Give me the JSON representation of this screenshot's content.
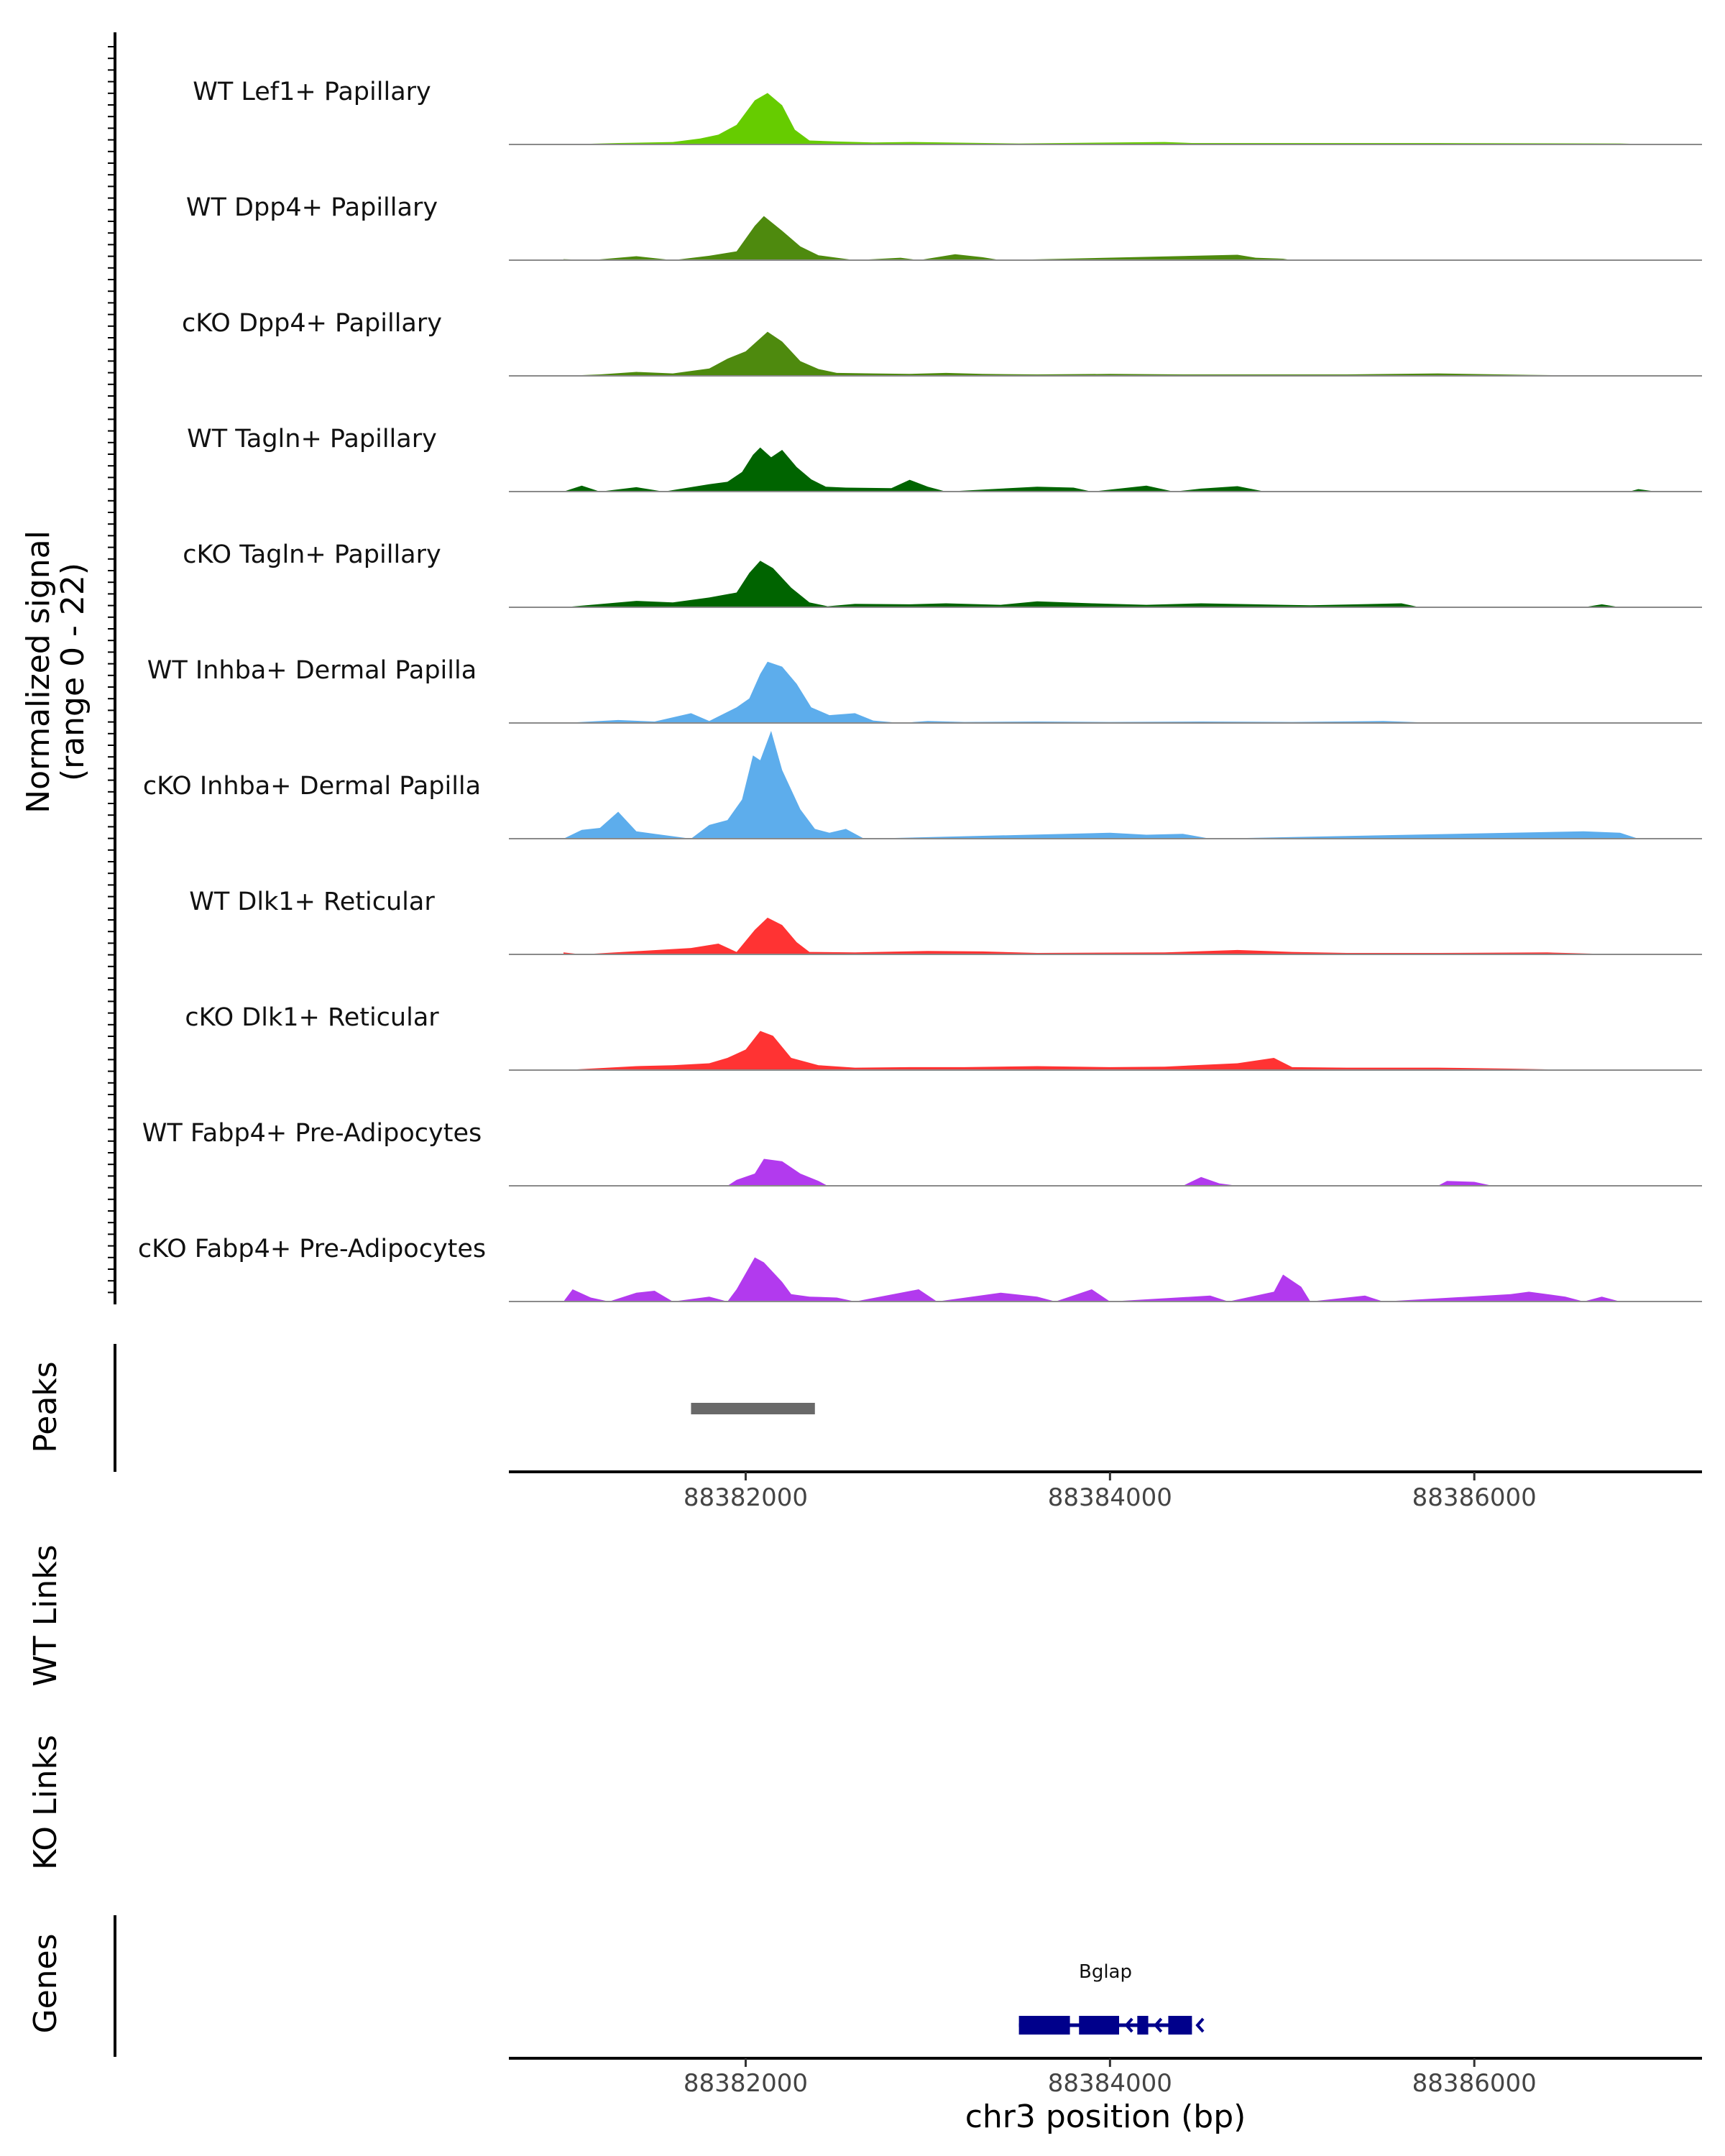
{
  "chart_data": {
    "type": "area",
    "title": "",
    "signal_axis_label": [
      "Normalized signal",
      "(range 0 - 22)"
    ],
    "signal_range": [
      0,
      22
    ],
    "xlabel": "chr3 position (bp)",
    "xlim": [
      88380700,
      88387250
    ],
    "x_ticks": [
      88382000,
      88384000,
      88386000
    ],
    "x_tick_labels": [
      "88382000",
      "88384000",
      "88386000"
    ],
    "tracks": [
      {
        "name": "WT Lef1+ Papillary",
        "color": "#66CC00",
        "points": [
          [
            88381000,
            0
          ],
          [
            88381300,
            0.3
          ],
          [
            88381600,
            0.5
          ],
          [
            88381750,
            1.2
          ],
          [
            88381850,
            2
          ],
          [
            88381950,
            4
          ],
          [
            88382050,
            9
          ],
          [
            88382120,
            10.5
          ],
          [
            88382200,
            8
          ],
          [
            88382270,
            3
          ],
          [
            88382350,
            0.8
          ],
          [
            88382500,
            0.6
          ],
          [
            88382700,
            0.4
          ],
          [
            88382900,
            0.5
          ],
          [
            88383500,
            0.2
          ],
          [
            88384300,
            0.5
          ],
          [
            88384450,
            0.3
          ],
          [
            88385800,
            0.3
          ],
          [
            88386800,
            0.2
          ],
          [
            88387000,
            0
          ]
        ]
      },
      {
        "name": "WT Dpp4+ Papillary",
        "color": "#4E8A0E",
        "points": [
          [
            88381000,
            0.2
          ],
          [
            88381150,
            0
          ],
          [
            88381400,
            0.8
          ],
          [
            88381600,
            0
          ],
          [
            88381800,
            0.9
          ],
          [
            88381950,
            1.8
          ],
          [
            88382050,
            7
          ],
          [
            88382100,
            9
          ],
          [
            88382200,
            6
          ],
          [
            88382300,
            2.8
          ],
          [
            88382400,
            1
          ],
          [
            88382500,
            0.5
          ],
          [
            88382600,
            0
          ],
          [
            88382850,
            0.5
          ],
          [
            88382950,
            0
          ],
          [
            88383150,
            1.2
          ],
          [
            88383300,
            0.6
          ],
          [
            88383400,
            0
          ],
          [
            88384700,
            1.1
          ],
          [
            88384800,
            0.5
          ],
          [
            88384950,
            0.3
          ],
          [
            88385000,
            0
          ]
        ]
      },
      {
        "name": "cKO Dpp4+ Papillary",
        "color": "#4E8A0E",
        "points": [
          [
            88381000,
            0
          ],
          [
            88381200,
            0.3
          ],
          [
            88381400,
            0.8
          ],
          [
            88381600,
            0.5
          ],
          [
            88381800,
            1.5
          ],
          [
            88381900,
            3.5
          ],
          [
            88382000,
            5
          ],
          [
            88382060,
            7
          ],
          [
            88382120,
            9
          ],
          [
            88382200,
            7
          ],
          [
            88382300,
            3
          ],
          [
            88382400,
            1.4
          ],
          [
            88382500,
            0.6
          ],
          [
            88382700,
            0.5
          ],
          [
            88382900,
            0.4
          ],
          [
            88383100,
            0.6
          ],
          [
            88383300,
            0.4
          ],
          [
            88383600,
            0.3
          ],
          [
            88384000,
            0.4
          ],
          [
            88384400,
            0.3
          ],
          [
            88384800,
            0.3
          ],
          [
            88385300,
            0.3
          ],
          [
            88385800,
            0.5
          ],
          [
            88386300,
            0.2
          ],
          [
            88386700,
            0
          ]
        ]
      },
      {
        "name": "WT Tagln+ Papillary",
        "color": "#006400",
        "points": [
          [
            88381000,
            0
          ],
          [
            88381100,
            1.2
          ],
          [
            88381200,
            0
          ],
          [
            88381400,
            0.9
          ],
          [
            88381550,
            0
          ],
          [
            88381800,
            1.5
          ],
          [
            88381900,
            2
          ],
          [
            88381980,
            4
          ],
          [
            88382040,
            7.5
          ],
          [
            88382080,
            9
          ],
          [
            88382140,
            7
          ],
          [
            88382200,
            8.5
          ],
          [
            88382280,
            5
          ],
          [
            88382360,
            2.5
          ],
          [
            88382440,
            1
          ],
          [
            88382550,
            0.8
          ],
          [
            88382800,
            0.7
          ],
          [
            88382900,
            2.4
          ],
          [
            88383000,
            1
          ],
          [
            88383100,
            0
          ],
          [
            88383600,
            1
          ],
          [
            88383800,
            0.8
          ],
          [
            88383900,
            0
          ],
          [
            88384200,
            1.2
          ],
          [
            88384350,
            0
          ],
          [
            88384500,
            0.6
          ],
          [
            88384700,
            1.1
          ],
          [
            88384850,
            0
          ],
          [
            88386850,
            0
          ],
          [
            88386900,
            0.5
          ],
          [
            88387000,
            0
          ]
        ]
      },
      {
        "name": "cKO Tagln+ Papillary",
        "color": "#006400",
        "points": [
          [
            88381000,
            0
          ],
          [
            88381400,
            1.3
          ],
          [
            88381600,
            1
          ],
          [
            88381800,
            2
          ],
          [
            88381950,
            3
          ],
          [
            88382020,
            7
          ],
          [
            88382080,
            9.5
          ],
          [
            88382150,
            8
          ],
          [
            88382250,
            4
          ],
          [
            88382350,
            1
          ],
          [
            88382450,
            0.2
          ],
          [
            88382600,
            0.7
          ],
          [
            88382900,
            0.6
          ],
          [
            88383100,
            0.8
          ],
          [
            88383400,
            0.5
          ],
          [
            88383600,
            1.2
          ],
          [
            88383900,
            0.8
          ],
          [
            88384200,
            0.5
          ],
          [
            88384500,
            0.8
          ],
          [
            88384800,
            0.6
          ],
          [
            88385100,
            0.4
          ],
          [
            88385600,
            0.8
          ],
          [
            88385700,
            0
          ],
          [
            88386600,
            0
          ],
          [
            88386700,
            0.6
          ],
          [
            88386800,
            0
          ]
        ]
      },
      {
        "name": "WT Inhba+ Dermal Papilla",
        "color": "#5DADEC",
        "points": [
          [
            88381000,
            0
          ],
          [
            88381300,
            0.6
          ],
          [
            88381500,
            0.3
          ],
          [
            88381700,
            2
          ],
          [
            88381800,
            0.4
          ],
          [
            88381950,
            3.2
          ],
          [
            88382020,
            5
          ],
          [
            88382080,
            10
          ],
          [
            88382120,
            12.5
          ],
          [
            88382200,
            11.5
          ],
          [
            88382280,
            8
          ],
          [
            88382360,
            3.2
          ],
          [
            88382460,
            1.6
          ],
          [
            88382600,
            2
          ],
          [
            88382700,
            0.5
          ],
          [
            88382850,
            0
          ],
          [
            88383000,
            0.4
          ],
          [
            88383200,
            0.2
          ],
          [
            88383600,
            0.3
          ],
          [
            88384000,
            0.2
          ],
          [
            88384500,
            0.3
          ],
          [
            88385000,
            0.2
          ],
          [
            88385500,
            0.4
          ],
          [
            88385800,
            0
          ]
        ]
      },
      {
        "name": "cKO Inhba+ Dermal Papilla",
        "color": "#5DADEC",
        "points": [
          [
            88381000,
            0
          ],
          [
            88381100,
            1.8
          ],
          [
            88381200,
            2.2
          ],
          [
            88381300,
            5.5
          ],
          [
            88381400,
            1.5
          ],
          [
            88381500,
            1
          ],
          [
            88381600,
            0.5
          ],
          [
            88381700,
            0
          ],
          [
            88381800,
            2.8
          ],
          [
            88381900,
            3.8
          ],
          [
            88381980,
            8
          ],
          [
            88382040,
            17
          ],
          [
            88382080,
            16
          ],
          [
            88382140,
            22
          ],
          [
            88382200,
            14
          ],
          [
            88382300,
            6
          ],
          [
            88382380,
            2
          ],
          [
            88382460,
            1.2
          ],
          [
            88382550,
            2
          ],
          [
            88382650,
            0
          ],
          [
            88384000,
            1.2
          ],
          [
            88384200,
            0.8
          ],
          [
            88384400,
            1
          ],
          [
            88384550,
            0
          ],
          [
            88386600,
            1.5
          ],
          [
            88386800,
            1.2
          ],
          [
            88386900,
            0
          ]
        ]
      },
      {
        "name": "WT Dlk1+ Reticular",
        "color": "#FF3333",
        "points": [
          [
            88381000,
            0.4
          ],
          [
            88381100,
            0
          ],
          [
            88381700,
            1.3
          ],
          [
            88381850,
            2.2
          ],
          [
            88381950,
            0.5
          ],
          [
            88382050,
            5
          ],
          [
            88382120,
            7.5
          ],
          [
            88382200,
            6
          ],
          [
            88382280,
            2.5
          ],
          [
            88382350,
            0.5
          ],
          [
            88382600,
            0.4
          ],
          [
            88383000,
            0.7
          ],
          [
            88383300,
            0.6
          ],
          [
            88383600,
            0.3
          ],
          [
            88384300,
            0.4
          ],
          [
            88384700,
            0.9
          ],
          [
            88385000,
            0.5
          ],
          [
            88385300,
            0.3
          ],
          [
            88385800,
            0.3
          ],
          [
            88386400,
            0.4
          ],
          [
            88386800,
            0
          ]
        ]
      },
      {
        "name": "cKO Dlk1+ Reticular",
        "color": "#FF3333",
        "points": [
          [
            88381000,
            0
          ],
          [
            88381400,
            0.8
          ],
          [
            88381600,
            1
          ],
          [
            88381800,
            1.4
          ],
          [
            88381900,
            2.5
          ],
          [
            88382000,
            4.2
          ],
          [
            88382080,
            8
          ],
          [
            88382150,
            7
          ],
          [
            88382250,
            2.5
          ],
          [
            88382400,
            1
          ],
          [
            88382600,
            0.5
          ],
          [
            88382900,
            0.6
          ],
          [
            88383200,
            0.6
          ],
          [
            88383600,
            0.8
          ],
          [
            88384000,
            0.6
          ],
          [
            88384300,
            0.7
          ],
          [
            88384700,
            1.4
          ],
          [
            88384900,
            2.5
          ],
          [
            88385000,
            0.6
          ],
          [
            88385300,
            0.5
          ],
          [
            88385800,
            0.5
          ],
          [
            88386200,
            0.3
          ],
          [
            88386600,
            0
          ]
        ]
      },
      {
        "name": "WT Fabp4+ Pre-Adipocytes",
        "color": "#B23AEE",
        "points": [
          [
            88381900,
            0
          ],
          [
            88381950,
            1.2
          ],
          [
            88382050,
            2.5
          ],
          [
            88382100,
            5.5
          ],
          [
            88382200,
            5
          ],
          [
            88382300,
            2.5
          ],
          [
            88382400,
            1
          ],
          [
            88382450,
            0
          ],
          [
            88384400,
            0
          ],
          [
            88384500,
            1.8
          ],
          [
            88384600,
            0.5
          ],
          [
            88384700,
            0
          ],
          [
            88385800,
            0
          ],
          [
            88385850,
            1
          ],
          [
            88386000,
            0.8
          ],
          [
            88386100,
            0
          ]
        ]
      },
      {
        "name": "cKO Fabp4+ Pre-Adipocytes",
        "color": "#B23AEE",
        "points": [
          [
            88381000,
            0
          ],
          [
            88381050,
            2.5
          ],
          [
            88381150,
            0.8
          ],
          [
            88381250,
            0
          ],
          [
            88381400,
            1.8
          ],
          [
            88381500,
            2.2
          ],
          [
            88381600,
            0
          ],
          [
            88381800,
            1
          ],
          [
            88381900,
            0
          ],
          [
            88381950,
            2.5
          ],
          [
            88382050,
            9
          ],
          [
            88382100,
            8
          ],
          [
            88382200,
            4
          ],
          [
            88382250,
            1.5
          ],
          [
            88382350,
            1
          ],
          [
            88382500,
            0.8
          ],
          [
            88382600,
            0
          ],
          [
            88382950,
            2.5
          ],
          [
            88383050,
            0
          ],
          [
            88383400,
            1.8
          ],
          [
            88383600,
            1
          ],
          [
            88383700,
            0
          ],
          [
            88383900,
            2.5
          ],
          [
            88384000,
            0
          ],
          [
            88384550,
            1.2
          ],
          [
            88384650,
            0
          ],
          [
            88384900,
            2
          ],
          [
            88384950,
            5.5
          ],
          [
            88385050,
            3
          ],
          [
            88385100,
            0
          ],
          [
            88385400,
            1.2
          ],
          [
            88385500,
            0
          ],
          [
            88386200,
            1.5
          ],
          [
            88386300,
            2
          ],
          [
            88386500,
            1
          ],
          [
            88386600,
            0
          ],
          [
            88386700,
            1
          ],
          [
            88386800,
            0
          ]
        ]
      }
    ],
    "peaks": {
      "label": "Peaks",
      "color": "#696969",
      "regions": [
        [
          88381700,
          88382380
        ]
      ]
    },
    "links": [
      {
        "label": "WT Links",
        "items": []
      },
      {
        "label": "KO Links",
        "items": []
      }
    ],
    "genes": {
      "label": "Genes",
      "color": "#00008B",
      "items": [
        {
          "name": "Bglap",
          "start": 88383500,
          "end": 88384450,
          "strand": "-",
          "exons": [
            [
              88383500,
              88383780
            ],
            [
              88383830,
              88384050
            ],
            [
              88384150,
              88384210
            ],
            [
              88384320,
              88384450
            ]
          ]
        }
      ]
    }
  }
}
